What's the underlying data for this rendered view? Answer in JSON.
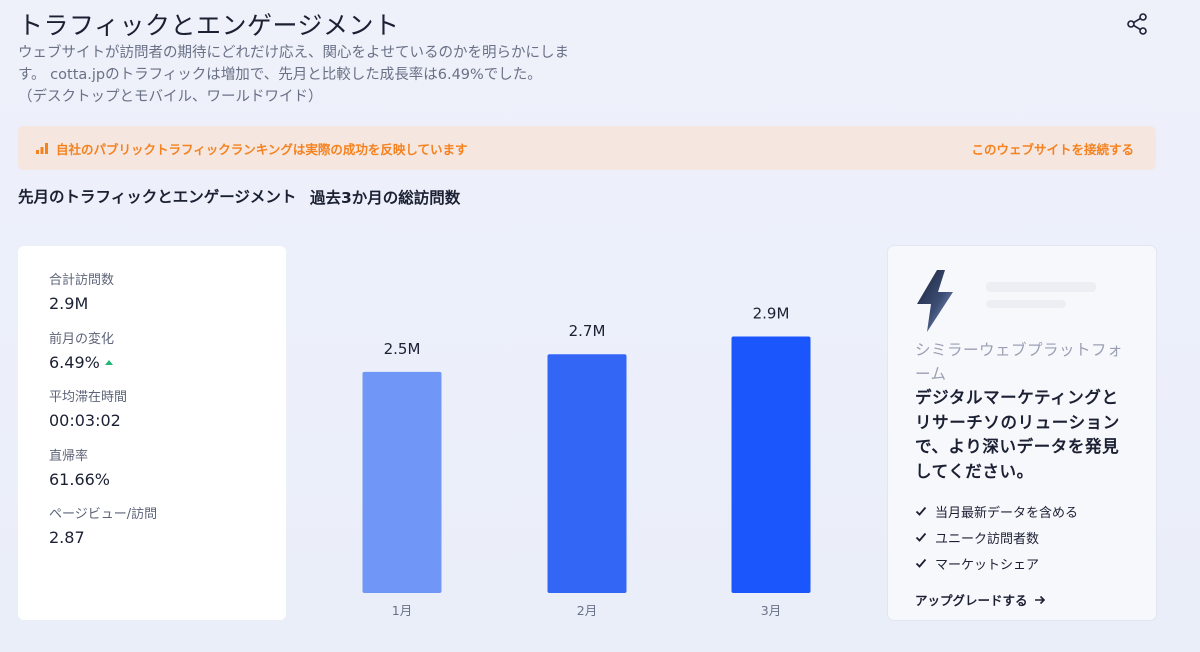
{
  "header": {
    "title": "トラフィックとエンゲージメント",
    "description_line1": "ウェブサイトが訪問者の期待にどれだけ応え、関心をよせているのかを明らかにしま",
    "description_line2": "す。 cotta.jpのトラフィックは増加で、先月と比較した成長率は6.49%でした。",
    "description_line3": "（デスクトップとモバイル、ワールドワイド）"
  },
  "alert": {
    "text": "自社のパブリックトラフィックランキングは実際の成功を反映しています",
    "link": "このウェブサイトを接続する",
    "color": "#f5821f"
  },
  "left_section": {
    "title": "先月のトラフィックとエンゲージメント",
    "metrics": [
      {
        "label": "合計訪問数",
        "value": "2.9M"
      },
      {
        "label": "前月の変化",
        "value": "6.49%",
        "trend": "up"
      },
      {
        "label": "平均滞在時間",
        "value": "00:03:02"
      },
      {
        "label": "直帰率",
        "value": "61.66%"
      },
      {
        "label": "ページビュー/訪問",
        "value": "2.87"
      }
    ]
  },
  "chart_section": {
    "title": "過去3か月の総訪問数"
  },
  "chart_data": {
    "type": "bar",
    "title": "過去3か月の総訪問数",
    "categories": [
      "1月",
      "2月",
      "3月"
    ],
    "values": [
      2.5,
      2.7,
      2.9
    ],
    "value_labels": [
      "2.5M",
      "2.7M",
      "2.9M"
    ],
    "unit": "M",
    "ylim": [
      0,
      3.2
    ],
    "grid": false,
    "colors": [
      "#7096f8",
      "#3366f5",
      "#1a56fb"
    ]
  },
  "promo": {
    "icon": "bolt-icon",
    "subtitle": "シミラーウェブプラットフォーム",
    "headline": "デジタルマーケティングとリサーチソのリューションで、より深いデータを発見してください。",
    "features": [
      "当月最新データを含める",
      "ユニーク訪問者数",
      "マーケットシェア"
    ],
    "cta": "アップグレードする"
  }
}
